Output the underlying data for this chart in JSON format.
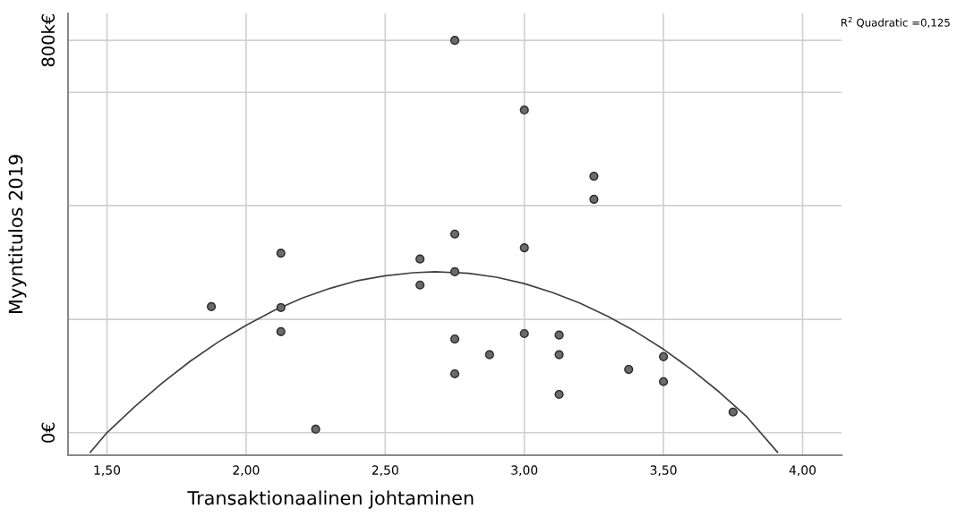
{
  "chart_data": {
    "type": "scatter",
    "xlabel": "Transaktionaalinen johtaminen",
    "ylabel": "Myyntitulos 2019",
    "xlim": [
      1.36,
      4.14
    ],
    "xticks": [
      {
        "value": 1.5,
        "label": "1,50"
      },
      {
        "value": 2.0,
        "label": "2,00"
      },
      {
        "value": 2.5,
        "label": "2,50"
      },
      {
        "value": 3.0,
        "label": "3,00"
      },
      {
        "value": 3.5,
        "label": "3,50"
      },
      {
        "value": 4.0,
        "label": "4,00"
      }
    ],
    "ylim": [
      -46,
      855
    ],
    "yticks": [
      {
        "value": 0,
        "label": "0€"
      },
      {
        "value": 231,
        "label": null
      },
      {
        "value": 463,
        "label": null
      },
      {
        "value": 694,
        "label": null
      },
      {
        "value": 800,
        "label": "800k€"
      }
    ],
    "grid": true,
    "marker": "circle",
    "series": [
      {
        "color": "#6b6b6b",
        "x": [
          1.875,
          2.125,
          2.125,
          2.125,
          2.25,
          2.625,
          2.625,
          2.75,
          2.75,
          2.75,
          2.75,
          2.75,
          2.875,
          3.0,
          3.0,
          3.0,
          3.125,
          3.125,
          3.125,
          3.25,
          3.25,
          3.375,
          3.5,
          3.5,
          3.75
        ],
        "values": [
          257,
          366,
          255,
          206,
          7,
          354,
          301,
          800,
          405,
          328,
          191,
          120,
          159,
          658,
          377,
          202,
          199,
          159,
          78,
          523,
          476,
          129,
          155,
          104,
          42
        ]
      },
      {
        "type": "line",
        "color": "#404040",
        "marker": "none",
        "x": [
          1.44,
          1.5,
          1.6,
          1.7,
          1.8,
          1.9,
          2.0,
          2.1,
          2.2,
          2.3,
          2.4,
          2.5,
          2.6,
          2.68,
          2.8,
          2.9,
          3.0,
          3.1,
          3.2,
          3.3,
          3.4,
          3.5,
          3.6,
          3.7,
          3.8,
          3.91
        ],
        "values": [
          -40,
          0,
          53,
          102,
          146,
          185,
          219,
          249,
          274,
          294,
          310,
          320,
          326,
          328,
          325,
          317,
          304,
          286,
          264,
          237,
          206,
          170,
          129,
          83,
          32,
          -40
        ]
      }
    ],
    "annotations": [
      "R$^{2}$ Quadratic =0,125"
    ]
  }
}
